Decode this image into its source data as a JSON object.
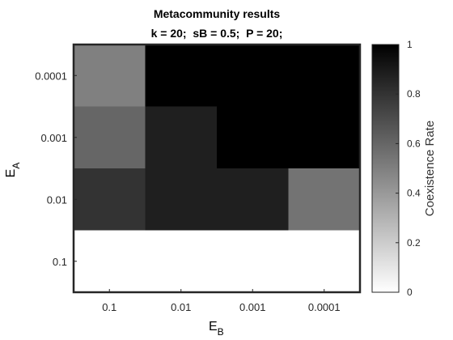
{
  "chart_data": {
    "type": "heatmap",
    "title": "Metacommunity results",
    "subtitle": "k = 20;  sB = 0.5;  P = 20;",
    "xlabel": {
      "main": "E",
      "sub": "B"
    },
    "ylabel": {
      "main": "E",
      "sub": "A"
    },
    "x_categories": [
      "0.1",
      "0.01",
      "0.001",
      "0.0001"
    ],
    "y_categories": [
      "0.0001",
      "0.001",
      "0.01",
      "0.1"
    ],
    "values": [
      [
        0.5,
        1.0,
        1.0,
        1.0
      ],
      [
        0.6,
        0.88,
        1.0,
        1.0
      ],
      [
        0.8,
        0.88,
        0.88,
        0.55
      ],
      [
        0.0,
        0.0,
        0.0,
        0.0
      ]
    ],
    "colorbar": {
      "label": "Coexistence Rate",
      "range": [
        0,
        1
      ],
      "ticks": [
        "0",
        "0.2",
        "0.4",
        "0.6",
        "0.8",
        "1"
      ],
      "colormap": "white-to-black"
    },
    "grid": false
  }
}
